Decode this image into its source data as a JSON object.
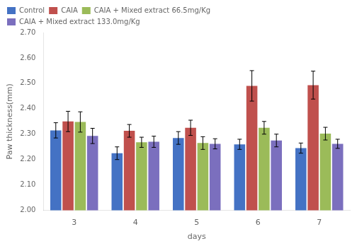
{
  "chart_data": {
    "type": "bar",
    "categories": [
      "3",
      "4",
      "5",
      "6",
      "7"
    ],
    "series": [
      {
        "name": "Control",
        "color": "#4472C4",
        "values": [
          2.315,
          2.225,
          2.285,
          2.26,
          2.245
        ],
        "errors": [
          0.03,
          0.025,
          0.025,
          0.02,
          0.02
        ]
      },
      {
        "name": "CAIA",
        "color": "#C0504D",
        "values": [
          2.35,
          2.313,
          2.325,
          2.49,
          2.493
        ],
        "errors": [
          0.04,
          0.025,
          0.03,
          0.06,
          0.055
        ]
      },
      {
        "name": "CAIA + Mixed extract 66.5mg/Kg",
        "color": "#9BBB59",
        "values": [
          2.348,
          2.268,
          2.265,
          2.325,
          2.302
        ],
        "errors": [
          0.04,
          0.02,
          0.025,
          0.025,
          0.025
        ]
      },
      {
        "name": "CAIA + Mixed extract 133.0mg/Kg",
        "color": "#7B6FBE",
        "values": [
          2.293,
          2.27,
          2.262,
          2.275,
          2.262
        ],
        "errors": [
          0.03,
          0.022,
          0.02,
          0.025,
          0.018
        ]
      }
    ],
    "xlabel": "days",
    "ylabel": "Paw thickness(mm)",
    "ylim": [
      2.0,
      2.7
    ],
    "yticks": [
      {
        "value": 2.0,
        "label": "2.00"
      },
      {
        "value": 2.1,
        "label": "2.10"
      },
      {
        "value": 2.2,
        "label": "2.20"
      },
      {
        "value": 2.3,
        "label": "2.30"
      },
      {
        "value": 2.4,
        "label": "2.40"
      },
      {
        "value": 2.5,
        "label": "2.50"
      },
      {
        "value": 2.6,
        "label": "2.60"
      },
      {
        "value": 2.7,
        "label": "2.70"
      }
    ],
    "grid": false,
    "legend": "upper left"
  }
}
